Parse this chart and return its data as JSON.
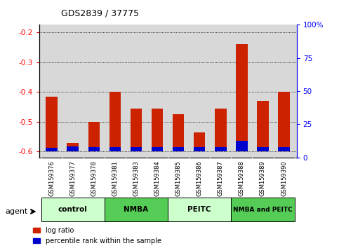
{
  "title": "GDS2839 / 37775",
  "samples": [
    "GSM159376",
    "GSM159377",
    "GSM159378",
    "GSM159381",
    "GSM159383",
    "GSM159384",
    "GSM159385",
    "GSM159386",
    "GSM159387",
    "GSM159388",
    "GSM159389",
    "GSM159390"
  ],
  "log_ratio": [
    -0.415,
    -0.57,
    -0.5,
    -0.4,
    -0.455,
    -0.455,
    -0.475,
    -0.535,
    -0.455,
    -0.24,
    -0.43,
    -0.4
  ],
  "percentile": [
    3.0,
    4.0,
    3.5,
    3.5,
    3.5,
    3.5,
    3.5,
    3.5,
    3.5,
    8.0,
    3.5,
    3.5
  ],
  "groups": [
    {
      "label": "control",
      "start": 0,
      "end": 3,
      "color": "#ccffcc"
    },
    {
      "label": "NMBA",
      "start": 3,
      "end": 6,
      "color": "#55cc55"
    },
    {
      "label": "PEITC",
      "start": 6,
      "end": 9,
      "color": "#ccffcc"
    },
    {
      "label": "NMBA and PEITC",
      "start": 9,
      "end": 12,
      "color": "#55cc55"
    }
  ],
  "ylim_left": [
    -0.62,
    -0.175
  ],
  "ylim_right": [
    0,
    100
  ],
  "yticks_left": [
    -0.6,
    -0.5,
    -0.4,
    -0.3,
    -0.2
  ],
  "yticks_right": [
    0,
    25,
    50,
    75,
    100
  ],
  "bar_color_red": "#cc2200",
  "bar_color_blue": "#0000cc",
  "grid_color": "#000000",
  "bg_color": "#ffffff",
  "plot_bg": "#d8d8d8",
  "xlabel_area_color": "#cccccc",
  "legend_red": "log ratio",
  "legend_blue": "percentile rank within the sample"
}
